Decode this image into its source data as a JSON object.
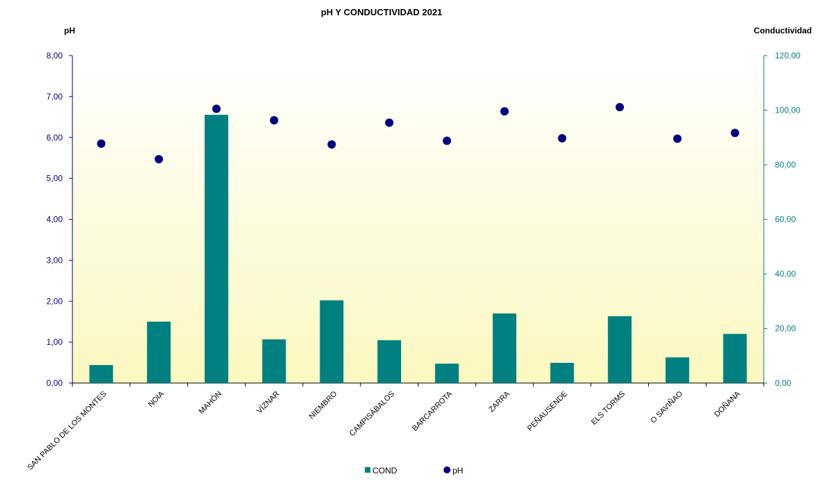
{
  "chart_data": {
    "type": "bar",
    "title": "pH Y CONDUCTIVIDAD 2021",
    "ylabel_left": "pH",
    "ylabel_right": "Conductividad",
    "ylim_left": [
      0,
      8
    ],
    "ylim_right": [
      0,
      120
    ],
    "yticks_left": [
      "0,00",
      "1,00",
      "2,00",
      "3,00",
      "4,00",
      "5,00",
      "6,00",
      "7,00",
      "8,00"
    ],
    "yticks_right": [
      "0,00",
      "20,00",
      "40,00",
      "60,00",
      "80,00",
      "100,00",
      "120,00"
    ],
    "categories": [
      "SAN PABLO DE LOS MONTES",
      "NOIA",
      "MAHÓN",
      "VÍZNAR",
      "NIEMBRO",
      "CAMPISÁBALOS",
      "BARCARROTA",
      "ZARRA",
      "PEÑAUSENDE",
      "ELS TORMS",
      "O SAVIÑAO",
      "DOÑANA"
    ],
    "series": [
      {
        "name": "COND",
        "type": "bar",
        "axis": "right",
        "color": "#008080",
        "values": [
          6.6,
          22.5,
          98.3,
          16.0,
          30.3,
          15.7,
          7.1,
          25.5,
          7.4,
          24.5,
          9.4,
          18.0
        ]
      },
      {
        "name": "pH",
        "type": "scatter",
        "axis": "left",
        "color": "#000080",
        "values": [
          5.85,
          5.47,
          6.7,
          6.42,
          5.83,
          6.36,
          5.92,
          6.64,
          5.98,
          6.74,
          5.97,
          6.11
        ]
      }
    ],
    "legend_position": "bottom-center",
    "background": "gradient light-yellow"
  }
}
